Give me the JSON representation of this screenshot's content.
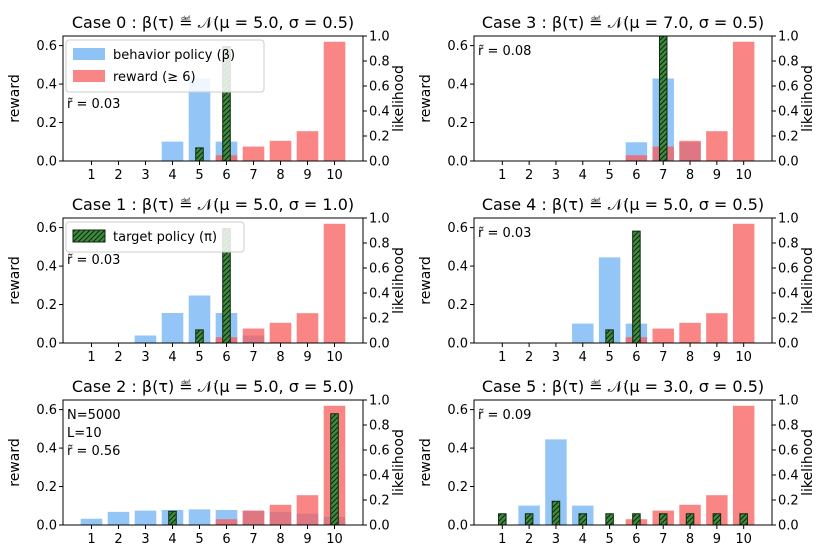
{
  "figure_title": "Reward, behavior policy and target policy distributions over 6 cases",
  "chart_data": [
    {
      "type": "bar",
      "title": "Case 0 : β(τ) ≝ 𝒩(μ = 5.0, σ = 0.5)",
      "case_label": "Case 0",
      "params": "𝒩(μ = 5.0, σ = 0.5)",
      "xlabel": "",
      "ylabel_left": "reward",
      "ylabel_right": "likelihood",
      "categories": [
        "1",
        "2",
        "3",
        "4",
        "5",
        "6",
        "7",
        "8",
        "9",
        "10"
      ],
      "ylim_left": [
        0,
        0.65
      ],
      "ylim_right": [
        0,
        1.0
      ],
      "yticks_left": [
        "0.0",
        "0.2",
        "0.4",
        "0.6"
      ],
      "yticks_right": [
        "0.0",
        "0.2",
        "0.4",
        "0.6",
        "0.8",
        "1.0"
      ],
      "series": [
        {
          "name": "behavior policy (β)",
          "axis": "right",
          "color": "#6aaef2",
          "values": [
            0,
            0,
            0,
            0.155,
            0.66,
            0.155,
            0,
            0,
            0,
            0
          ]
        },
        {
          "name": "reward (≥ 6)",
          "axis": "left",
          "color": "#f85c5c",
          "values": [
            0,
            0,
            0,
            0,
            0,
            0.03,
            0.075,
            0.105,
            0.155,
            0.62
          ]
        },
        {
          "name": "target policy (π)",
          "axis": "right",
          "color": "#2e7d32",
          "hatch": true,
          "values": [
            0,
            0,
            0,
            0,
            0.105,
            0.915,
            0,
            0,
            0,
            0
          ]
        }
      ],
      "legend": [
        "behavior policy (β)",
        "reward (≥ 6)"
      ],
      "annotations": [
        "r̃ = 0.03"
      ]
    },
    {
      "type": "bar",
      "title": "Case 1 : β(τ) ≝ 𝒩(μ = 5.0, σ = 1.0)",
      "case_label": "Case 1",
      "params": "𝒩(μ = 5.0, σ = 1.0)",
      "xlabel": "",
      "ylabel_left": "reward",
      "ylabel_right": "likelihood",
      "categories": [
        "1",
        "2",
        "3",
        "4",
        "5",
        "6",
        "7",
        "8",
        "9",
        "10"
      ],
      "ylim_left": [
        0,
        0.65
      ],
      "ylim_right": [
        0,
        1.0
      ],
      "yticks_left": [
        "0.0",
        "0.2",
        "0.4",
        "0.6"
      ],
      "yticks_right": [
        "0.0",
        "0.2",
        "0.4",
        "0.6",
        "0.8",
        "1.0"
      ],
      "series": [
        {
          "name": "behavior policy (β)",
          "axis": "right",
          "color": "#6aaef2",
          "values": [
            0,
            0,
            0.06,
            0.24,
            0.38,
            0.24,
            0.06,
            0,
            0,
            0
          ]
        },
        {
          "name": "reward (≥ 6)",
          "axis": "left",
          "color": "#f85c5c",
          "values": [
            0,
            0,
            0,
            0,
            0,
            0.03,
            0.075,
            0.105,
            0.155,
            0.62
          ]
        },
        {
          "name": "target policy (π)",
          "axis": "right",
          "color": "#2e7d32",
          "hatch": true,
          "values": [
            0,
            0,
            0,
            0,
            0.105,
            0.915,
            0,
            0,
            0,
            0
          ]
        }
      ],
      "legend": [
        "target policy (π)"
      ],
      "annotations": [
        "r̃ = 0.03"
      ]
    },
    {
      "type": "bar",
      "title": "Case 2 : β(τ) ≝ 𝒩(μ = 5.0, σ = 5.0)",
      "case_label": "Case 2",
      "params": "𝒩(μ = 5.0, σ = 5.0)",
      "xlabel": "",
      "ylabel_left": "reward",
      "ylabel_right": "likelihood",
      "categories": [
        "1",
        "2",
        "3",
        "4",
        "5",
        "6",
        "7",
        "8",
        "9",
        "10"
      ],
      "ylim_left": [
        0,
        0.65
      ],
      "ylim_right": [
        0,
        1.0
      ],
      "yticks_left": [
        "0.0",
        "0.2",
        "0.4",
        "0.6"
      ],
      "yticks_right": [
        "0.0",
        "0.2",
        "0.4",
        "0.6",
        "0.8",
        "1.0"
      ],
      "series": [
        {
          "name": "behavior policy (β)",
          "axis": "right",
          "color": "#6aaef2",
          "values": [
            0.05,
            0.105,
            0.115,
            0.12,
            0.125,
            0.12,
            0.115,
            0.105,
            0.09,
            0.065
          ]
        },
        {
          "name": "reward (≥ 6)",
          "axis": "left",
          "color": "#f85c5c",
          "values": [
            0,
            0,
            0,
            0,
            0,
            0.03,
            0.075,
            0.105,
            0.155,
            0.62
          ]
        },
        {
          "name": "target policy (π)",
          "axis": "right",
          "color": "#2e7d32",
          "hatch": true,
          "values": [
            0,
            0,
            0,
            0.11,
            0,
            0,
            0,
            0,
            0,
            0.89
          ]
        }
      ],
      "legend": [],
      "annotations": [
        "N=5000",
        "L=10",
        "r̃ = 0.56"
      ]
    },
    {
      "type": "bar",
      "title": "Case 3 : β(τ) ≝ 𝒩(μ = 7.0, σ = 0.5)",
      "case_label": "Case 3",
      "params": "𝒩(μ = 7.0, σ = 0.5)",
      "xlabel": "",
      "ylabel_left": "reward",
      "ylabel_right": "likelihood",
      "categories": [
        "1",
        "2",
        "3",
        "4",
        "5",
        "6",
        "7",
        "8",
        "9",
        "10"
      ],
      "ylim_left": [
        0,
        0.65
      ],
      "ylim_right": [
        0,
        1.0
      ],
      "yticks_left": [
        "0.0",
        "0.2",
        "0.4",
        "0.6"
      ],
      "yticks_right": [
        "0.0",
        "0.2",
        "0.4",
        "0.6",
        "0.8",
        "1.0"
      ],
      "series": [
        {
          "name": "behavior policy (β)",
          "axis": "right",
          "color": "#6aaef2",
          "values": [
            0,
            0,
            0,
            0,
            0,
            0.15,
            0.66,
            0.15,
            0,
            0
          ]
        },
        {
          "name": "reward (≥ 6)",
          "axis": "left",
          "color": "#f85c5c",
          "values": [
            0,
            0,
            0,
            0,
            0,
            0.03,
            0.075,
            0.105,
            0.155,
            0.62
          ]
        },
        {
          "name": "target policy (π)",
          "axis": "right",
          "color": "#2e7d32",
          "hatch": true,
          "values": [
            0,
            0,
            0,
            0,
            0,
            0,
            1.0,
            0,
            0,
            0
          ]
        }
      ],
      "legend": [],
      "annotations": [
        "r̃ = 0.08"
      ]
    },
    {
      "type": "bar",
      "title": "Case 4 : β(τ) ≝ 𝒩(μ = 5.0, σ = 0.5)",
      "case_label": "Case 4",
      "params": "𝒩(μ = 5.0, σ = 0.5)",
      "xlabel": "",
      "ylabel_left": "reward",
      "ylabel_right": "likelihood",
      "categories": [
        "1",
        "2",
        "3",
        "4",
        "5",
        "6",
        "7",
        "8",
        "9",
        "10"
      ],
      "ylim_left": [
        0,
        0.65
      ],
      "ylim_right": [
        0,
        1.0
      ],
      "yticks_left": [
        "0.0",
        "0.2",
        "0.4",
        "0.6"
      ],
      "yticks_right": [
        "0.0",
        "0.2",
        "0.4",
        "0.6",
        "0.8",
        "1.0"
      ],
      "series": [
        {
          "name": "behavior policy (β)",
          "axis": "right",
          "color": "#6aaef2",
          "values": [
            0,
            0,
            0,
            0.155,
            0.685,
            0.155,
            0,
            0,
            0,
            0
          ]
        },
        {
          "name": "reward (≥ 6)",
          "axis": "left",
          "color": "#f85c5c",
          "values": [
            0,
            0,
            0,
            0,
            0,
            0.03,
            0.075,
            0.105,
            0.155,
            0.62
          ]
        },
        {
          "name": "target policy (π)",
          "axis": "right",
          "color": "#2e7d32",
          "hatch": true,
          "values": [
            0,
            0,
            0,
            0,
            0.105,
            0.895,
            0,
            0,
            0,
            0
          ]
        }
      ],
      "legend": [],
      "annotations": [
        "r̃ = 0.03"
      ]
    },
    {
      "type": "bar",
      "title": "Case 5 : β(τ) ≝ 𝒩(μ = 3.0, σ = 0.5)",
      "case_label": "Case 5",
      "params": "𝒩(μ = 3.0, σ = 0.5)",
      "xlabel": "",
      "ylabel_left": "reward",
      "ylabel_right": "likelihood",
      "categories": [
        "1",
        "2",
        "3",
        "4",
        "5",
        "6",
        "7",
        "8",
        "9",
        "10"
      ],
      "ylim_left": [
        0,
        0.65
      ],
      "ylim_right": [
        0,
        1.0
      ],
      "yticks_left": [
        "0.0",
        "0.2",
        "0.4",
        "0.6"
      ],
      "yticks_right": [
        "0.0",
        "0.2",
        "0.4",
        "0.6",
        "0.8",
        "1.0"
      ],
      "series": [
        {
          "name": "behavior policy (β)",
          "axis": "right",
          "color": "#6aaef2",
          "values": [
            0,
            0.155,
            0.685,
            0.155,
            0,
            0,
            0,
            0,
            0,
            0
          ]
        },
        {
          "name": "reward (≥ 6)",
          "axis": "left",
          "color": "#f85c5c",
          "values": [
            0,
            0,
            0,
            0,
            0,
            0.03,
            0.075,
            0.105,
            0.155,
            0.62
          ]
        },
        {
          "name": "target policy (π)",
          "axis": "right",
          "color": "#2e7d32",
          "hatch": true,
          "values": [
            0.09,
            0.09,
            0.19,
            0.09,
            0.09,
            0.09,
            0.09,
            0.09,
            0.09,
            0.09
          ]
        }
      ],
      "legend": [],
      "annotations": [
        "r̃ = 0.09"
      ]
    }
  ]
}
